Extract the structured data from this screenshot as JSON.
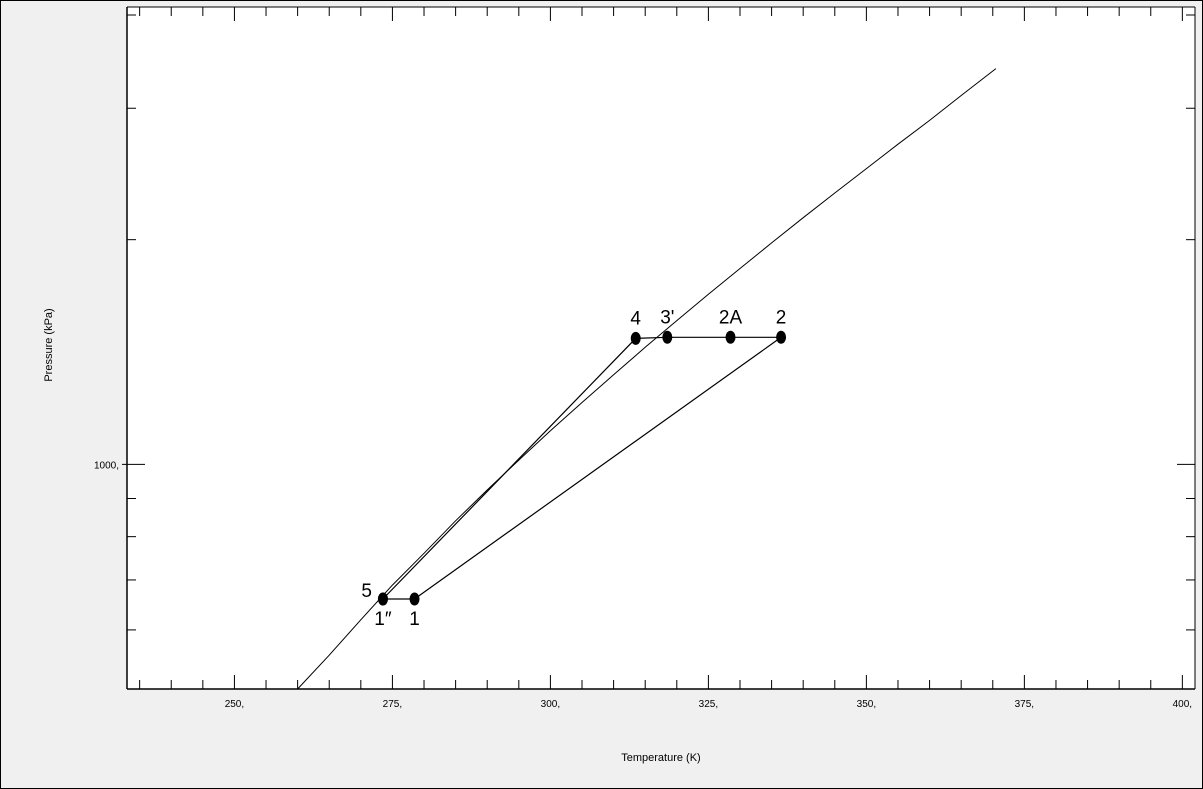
{
  "chart_data": {
    "type": "line",
    "xlabel": "Temperature (K)",
    "ylabel": "Pressure (kPa)",
    "xlim": [
      233,
      402
    ],
    "ylog": true,
    "ylim": [
      500,
      4100
    ],
    "x_ticks": [
      {
        "value": 250,
        "label": "250,"
      },
      {
        "value": 275,
        "label": "275,"
      },
      {
        "value": 300,
        "label": "300,"
      },
      {
        "value": 325,
        "label": "325,"
      },
      {
        "value": 350,
        "label": "350,"
      },
      {
        "value": 375,
        "label": "375,"
      },
      {
        "value": 400,
        "label": "400,"
      }
    ],
    "y_ticks": [
      {
        "value": 1000,
        "label": "1000,"
      }
    ],
    "x_minor_step": 5,
    "y_minor_ticks": [
      600,
      700,
      800,
      900,
      2000,
      3000,
      4000
    ],
    "saturation_curve": {
      "x": [
        260,
        265,
        270,
        275,
        280,
        285,
        290,
        295,
        300,
        305,
        310,
        315,
        320,
        325,
        330,
        335,
        340,
        345,
        350,
        355,
        360,
        365,
        370.5
      ],
      "y": [
        500,
        555,
        619,
        689,
        760,
        840,
        924,
        1013,
        1109,
        1210,
        1318,
        1435,
        1558,
        1690,
        1830,
        1980,
        2140,
        2310,
        2490,
        2685,
        2890,
        3120,
        3390
      ]
    },
    "cycle": [
      {
        "label": "1",
        "x": 278.5,
        "y": 660
      },
      {
        "label": "2",
        "x": 336.5,
        "y": 1480
      },
      {
        "label": "2A",
        "x": 328.5,
        "y": 1480
      },
      {
        "label": "3'",
        "x": 318.5,
        "y": 1480
      },
      {
        "label": "4",
        "x": 313.5,
        "y": 1475
      },
      {
        "label": "5",
        "x": 273.5,
        "y": 660
      },
      {
        "label": "1″",
        "x": 273.5,
        "y": 660
      }
    ],
    "cycle_path": [
      "1",
      "2",
      "2A",
      "3'",
      "4",
      "5",
      "1"
    ]
  }
}
